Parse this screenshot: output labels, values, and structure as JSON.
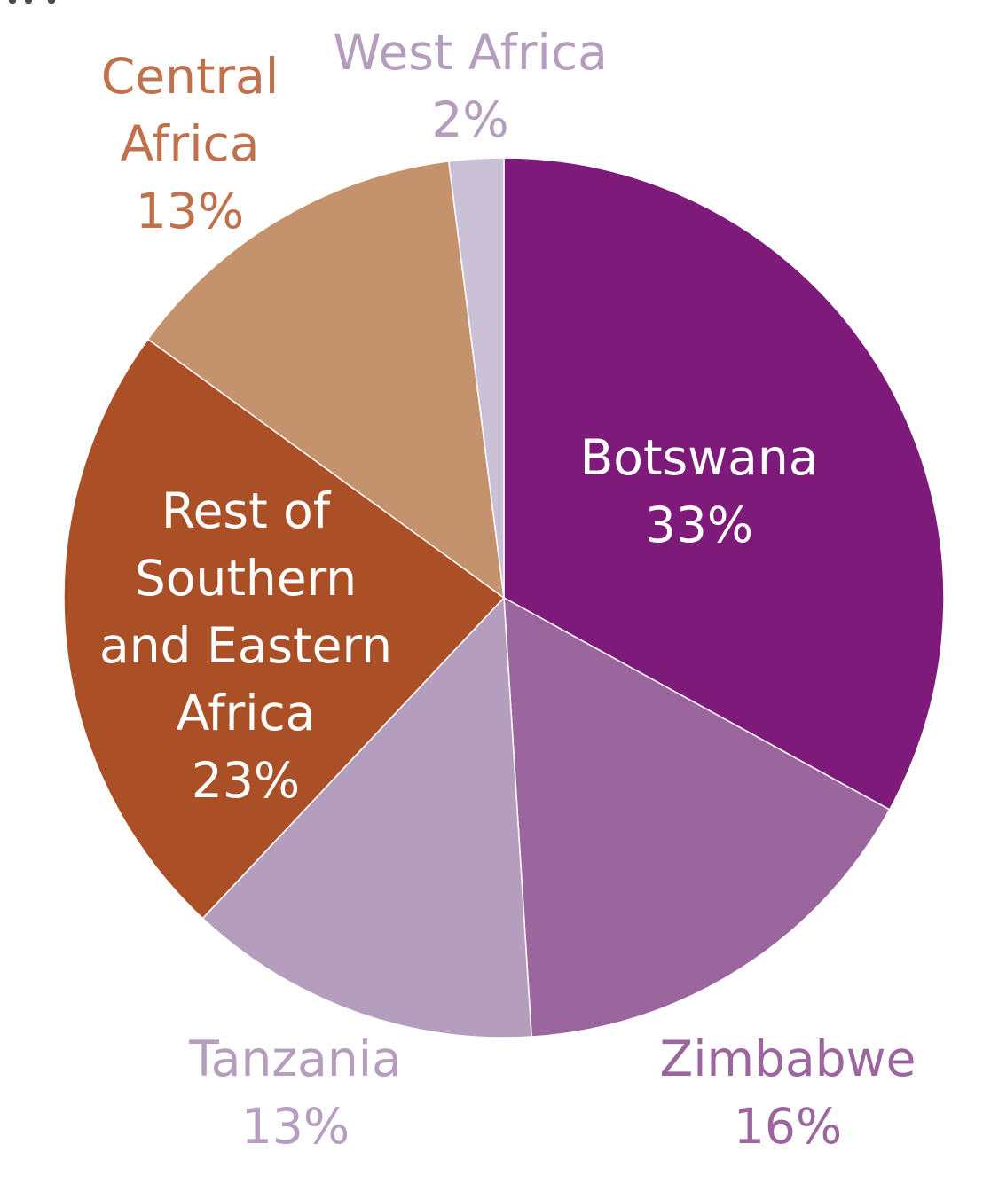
{
  "chart_data": {
    "type": "pie",
    "title": "",
    "unit": "%",
    "start_angle_deg": 0,
    "direction": "clockwise",
    "slices": [
      {
        "label_lines": [
          "Botswana"
        ],
        "value": 33,
        "label_value": "33%",
        "color": "#7E1A7A",
        "label_color": "#FFFFFF",
        "label_position": "inside"
      },
      {
        "label_lines": [
          "Zimbabwe"
        ],
        "value": 16,
        "label_value": "16%",
        "color": "#9B669E",
        "label_color": "#9B669E",
        "label_position": "outside"
      },
      {
        "label_lines": [
          "Tanzania"
        ],
        "value": 13,
        "label_value": "13%",
        "color": "#B59DBE",
        "label_color": "#B59DBE",
        "label_position": "outside"
      },
      {
        "label_lines": [
          "Rest of",
          "Southern",
          "and Eastern",
          "Africa"
        ],
        "value": 23,
        "label_value": "23%",
        "color": "#AB4F26",
        "label_color": "#FFFFFF",
        "label_position": "inside"
      },
      {
        "label_lines": [
          "Central",
          "Africa"
        ],
        "value": 13,
        "label_value": "13%",
        "color": "#C4926C",
        "label_color": "#C0714C",
        "label_position": "outside"
      },
      {
        "label_lines": [
          "West Africa"
        ],
        "value": 2,
        "label_value": "2%",
        "color": "#CBC1D7",
        "label_color": "#B59DBE",
        "label_position": "outside"
      }
    ]
  }
}
